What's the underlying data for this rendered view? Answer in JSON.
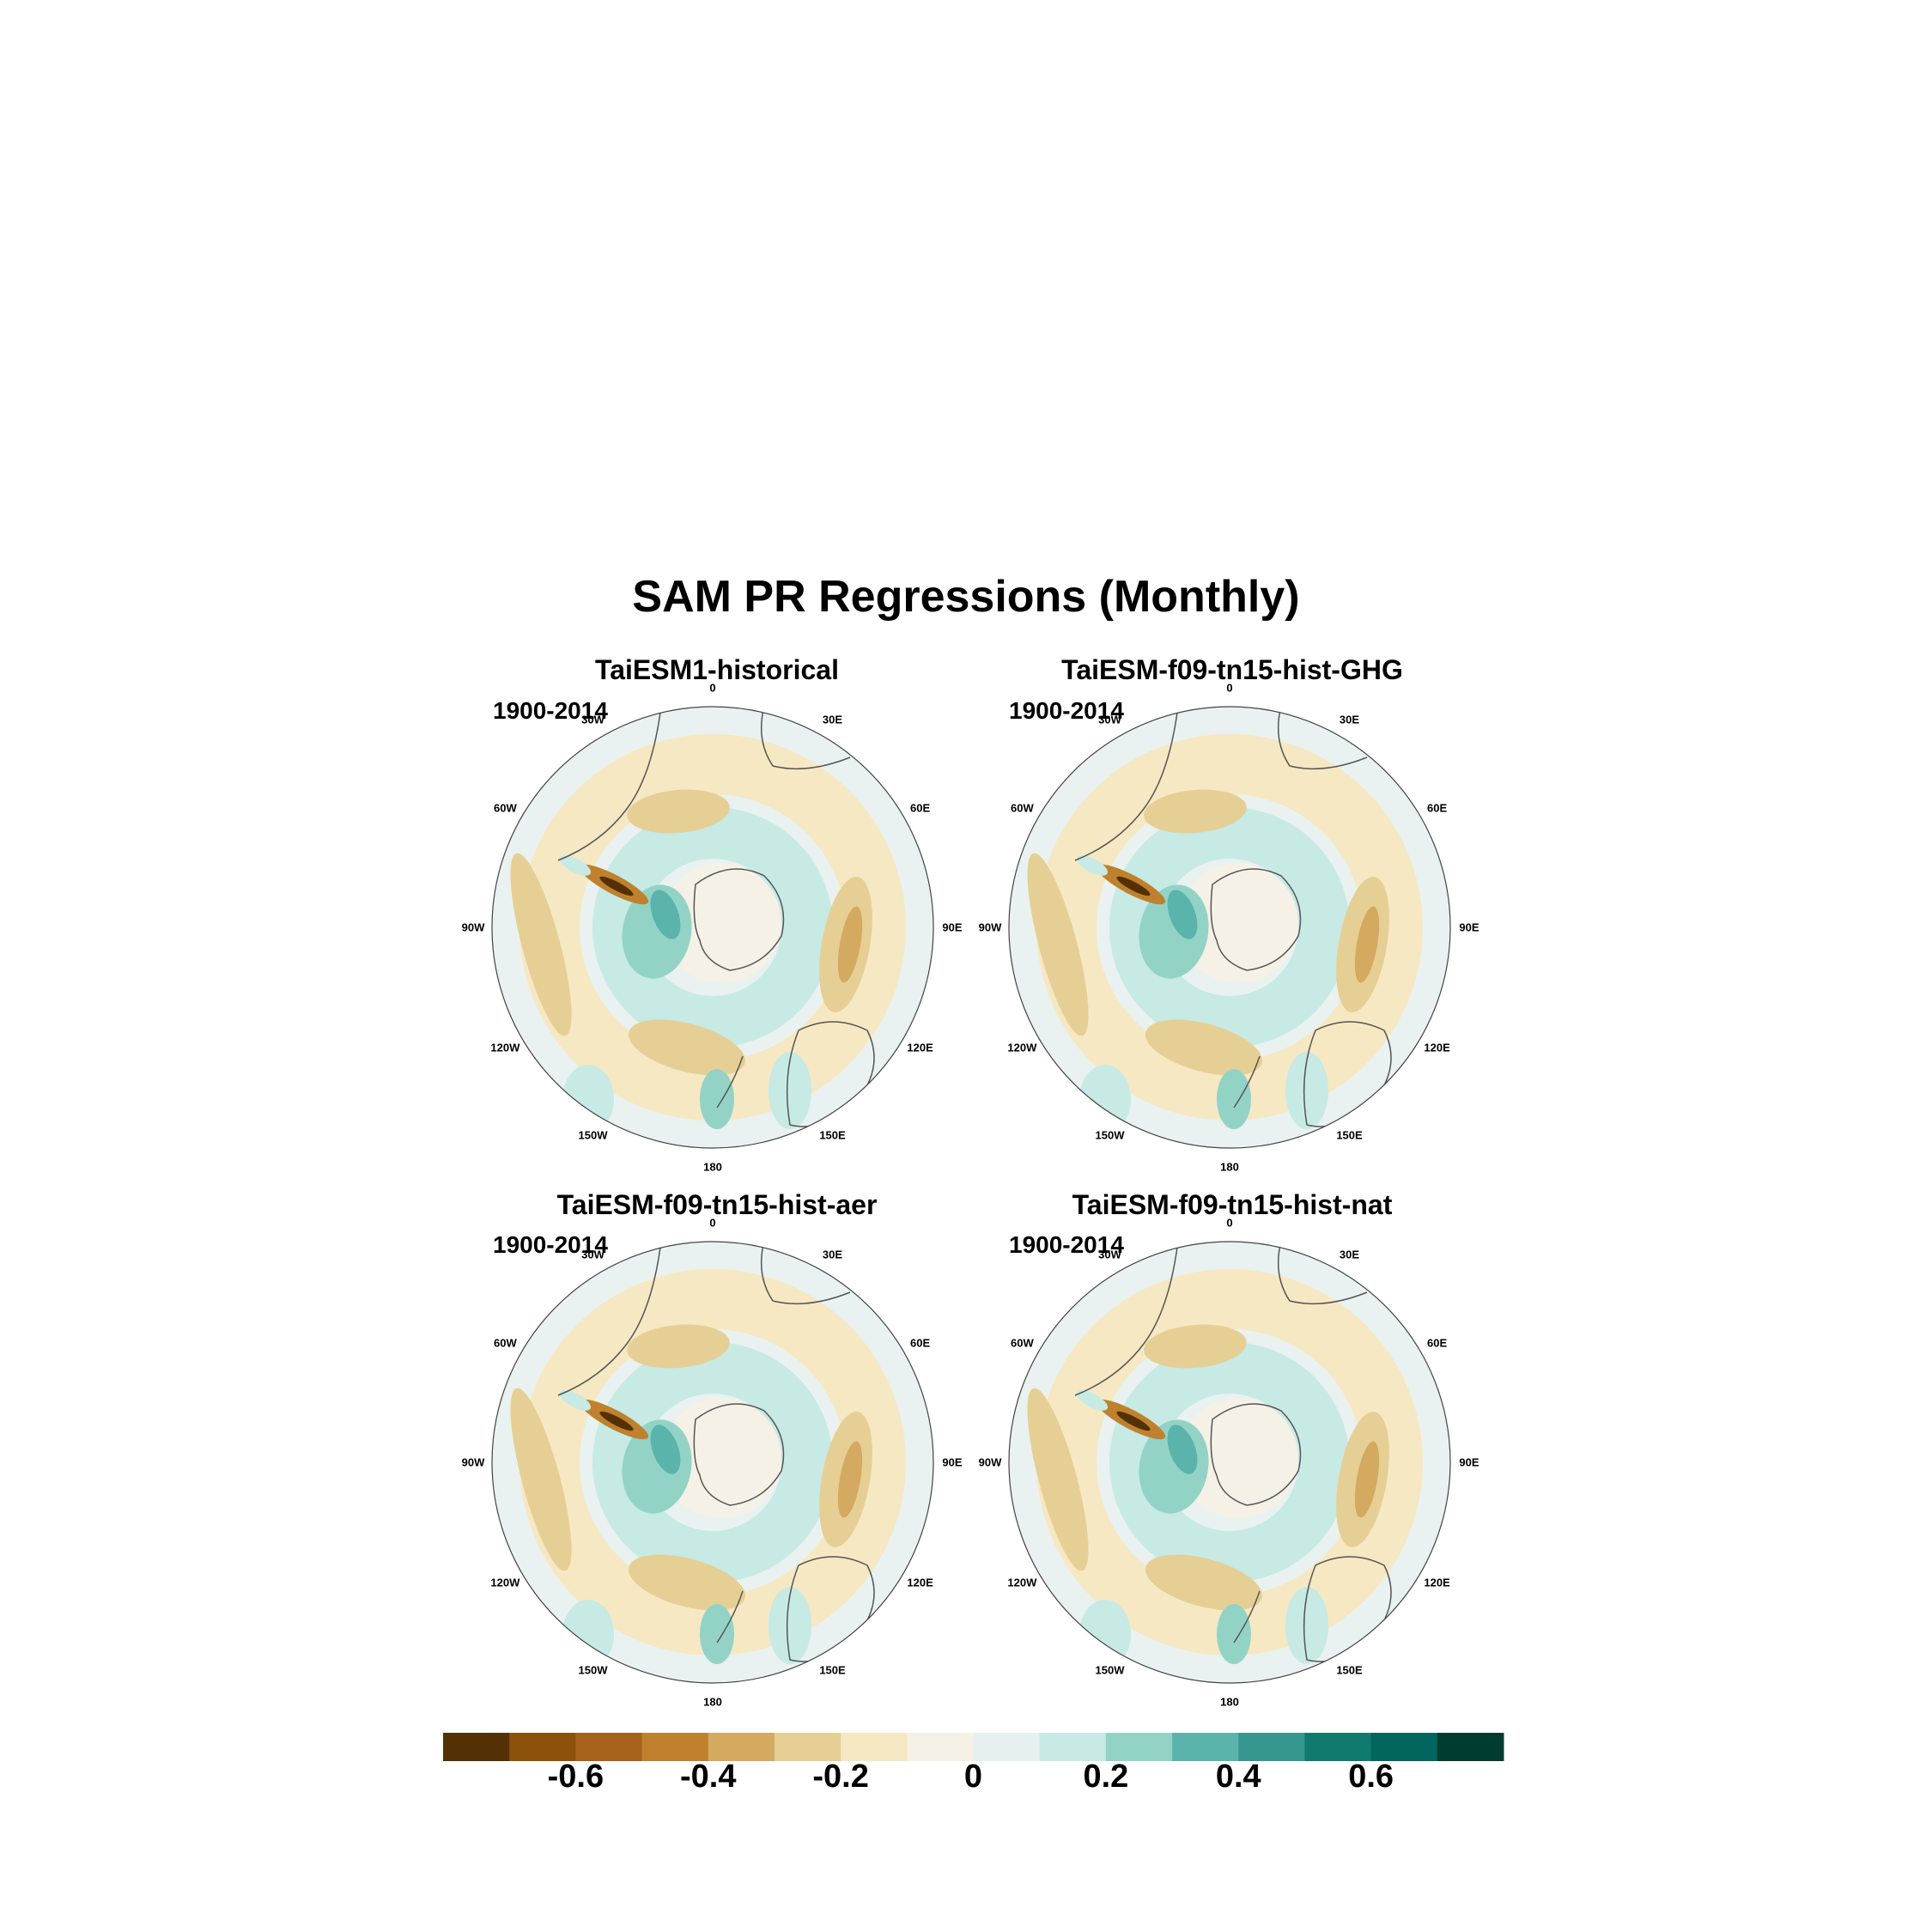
{
  "title": "SAM PR Regressions (Monthly)",
  "panels": [
    {
      "title": "TaiESM1-historical",
      "period": "1900-2014"
    },
    {
      "title": "TaiESM-f09-tn15-hist-GHG",
      "period": "1900-2014"
    },
    {
      "title": "TaiESM-f09-tn15-hist-aer",
      "period": "1900-2014"
    },
    {
      "title": "TaiESM-f09-tn15-hist-nat",
      "period": "1900-2014"
    }
  ],
  "longitude_labels": [
    "0",
    "30E",
    "60E",
    "90E",
    "120E",
    "150E",
    "180",
    "150W",
    "120W",
    "90W",
    "60W",
    "30W"
  ],
  "colorbar": {
    "colors": [
      "#543005",
      "#8c510a",
      "#a6611a",
      "#bf812d",
      "#d4a960",
      "#e6cf95",
      "#f6e8c3",
      "#f5f1e6",
      "#e6f0ee",
      "#c7eae5",
      "#93d3c6",
      "#5ab4ac",
      "#35978f",
      "#117a6f",
      "#01665e",
      "#003c30"
    ],
    "tick_labels": [
      "-0.6",
      "-0.4",
      "-0.2",
      "0",
      "0.2",
      "0.4",
      "0.6"
    ],
    "tick_values": [
      -0.6,
      -0.4,
      -0.2,
      0,
      0.2,
      0.4,
      0.6
    ],
    "range": [
      -0.8,
      0.8
    ]
  }
}
